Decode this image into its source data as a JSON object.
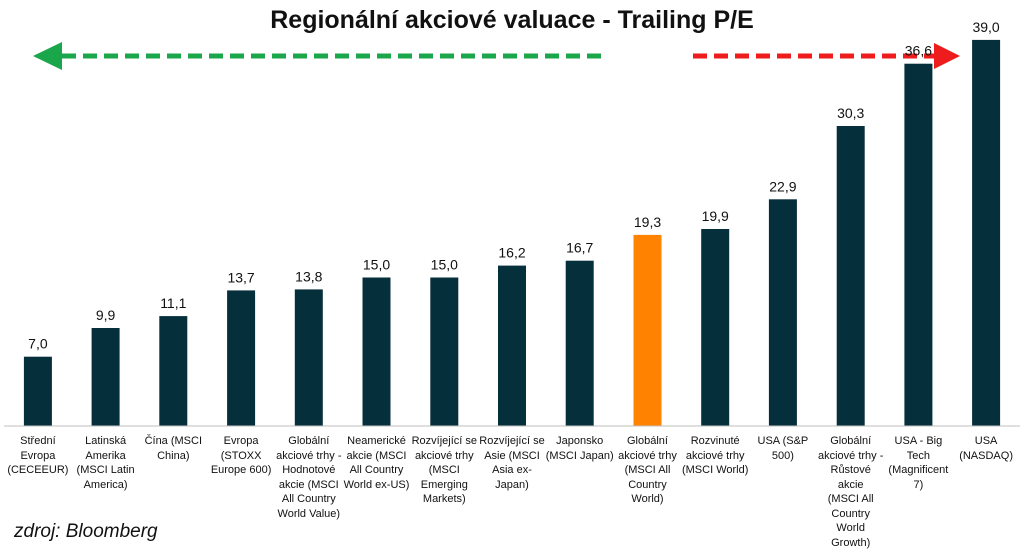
{
  "title": "Regionální akciové valuace - Trailing P/E",
  "source": "zdroj: Bloomberg",
  "colors": {
    "bar": "#062f3c",
    "highlight": "#ff8200",
    "arrow_left": "#1aa64b",
    "arrow_right": "#ee1c1c",
    "axis": "#bfbfbf",
    "text": "#111111"
  },
  "chart_data": {
    "type": "bar",
    "title": "Regionální akciové valuace - Trailing P/E",
    "xlabel": "",
    "ylabel": "",
    "ylim": [
      0,
      40
    ],
    "grid": false,
    "legend": "none",
    "highlight_index": 9,
    "categories": [
      "Střední Evropa (CECEEUR)",
      "Latinská Amerika (MSCI Latin America)",
      "Čína (MSCI China)",
      "Evropa (STOXX Europe 600)",
      "Globální akciové trhy - Hodnotové akcie (MSCI All Country World Value)",
      "Neamerické akcie (MSCI All Country World ex-US)",
      "Rozvíjející se akciové trhy (MSCI Emerging Markets)",
      "Rozvíjející se Asie (MSCI Asia ex-Japan)",
      "Japonsko (MSCI Japan)",
      "Globální akciové trhy (MSCI All Country World)",
      "Rozvinuté akciové trhy (MSCI World)",
      "USA (S&P 500)",
      "Globální akciové trhy - Růstové akcie (MSCI All Country World Growth)",
      "USA - Big Tech (Magnificent 7)",
      "USA (NASDAQ)"
    ],
    "category_lines": [
      [
        "Střední",
        "Evropa",
        "(CECEEUR)"
      ],
      [
        "Latinská",
        "Amerika",
        "(MSCI Latin",
        "America)"
      ],
      [
        "Čína (MSCI",
        "China)"
      ],
      [
        "Evropa",
        "(STOXX",
        "Europe 600)"
      ],
      [
        "Globální",
        "akciové trhy -",
        "Hodnotové",
        "akcie (MSCI",
        "All Country",
        "World Value)"
      ],
      [
        "Neamerické",
        "akcie (MSCI",
        "All Country",
        "World ex-US)"
      ],
      [
        "Rozvíjející se",
        "akciové trhy",
        "(MSCI",
        "Emerging",
        "Markets)"
      ],
      [
        "Rozvíjející se",
        "Asie (MSCI",
        "Asia ex-",
        "Japan)"
      ],
      [
        "Japonsko",
        "(MSCI Japan)"
      ],
      [
        "Globální",
        "akciové trhy",
        "(MSCI All",
        "Country",
        "World)"
      ],
      [
        "Rozvinuté",
        "akciové trhy",
        "(MSCI World)"
      ],
      [
        "USA (S&P",
        "500)"
      ],
      [
        "Globální",
        "akciové trhy -",
        "Růstové akcie",
        "(MSCI All",
        "Country",
        "World",
        "Growth)"
      ],
      [
        "USA - Big",
        "Tech",
        "(Magnificent",
        "7)"
      ],
      [
        "USA",
        "(NASDAQ)"
      ]
    ],
    "values": [
      7.0,
      9.9,
      11.1,
      13.7,
      13.8,
      15.0,
      15.0,
      16.2,
      16.7,
      19.3,
      19.9,
      22.9,
      30.3,
      36.6,
      39.0
    ],
    "value_labels": [
      "7,0",
      "9,9",
      "11,1",
      "13,7",
      "13,8",
      "15,0",
      "15,0",
      "16,2",
      "16,7",
      "19,3",
      "19,9",
      "22,9",
      "30,3",
      "36,6",
      "39,0"
    ]
  }
}
